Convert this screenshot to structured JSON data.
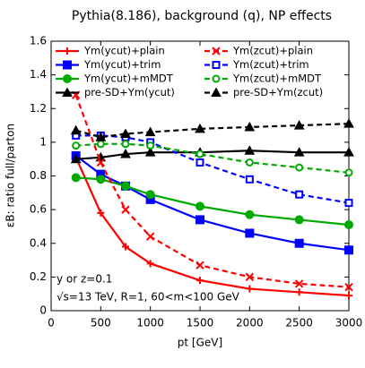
{
  "chart_data": {
    "type": "line",
    "title": "Pythia(8.186), background (q), NP effects",
    "x_label": "pt [GeV]",
    "y_label": "εB: ratio full/parton",
    "annotations": [
      "y or z=0.1",
      "√s=13 TeV, R=1, 60<m<100 GeV"
    ],
    "x": [
      250,
      500,
      750,
      1000,
      1500,
      2000,
      2500,
      3000
    ],
    "xlim": [
      0,
      3000
    ],
    "xticks": [
      0,
      500,
      1000,
      1500,
      2000,
      2500,
      3000
    ],
    "ylim": [
      0,
      1.6
    ],
    "yticks": [
      0,
      0.2,
      0.4,
      0.6,
      0.8,
      1,
      1.2,
      1.4,
      1.6
    ],
    "grid": false,
    "series": [
      {
        "name": "Ym(ycut)+plain",
        "color": "#ff0000",
        "dash": false,
        "marker": "plus",
        "values": [
          0.91,
          0.58,
          0.38,
          0.28,
          0.18,
          0.13,
          0.11,
          0.09
        ]
      },
      {
        "name": "Ym(ycut)+trim",
        "color": "#0000ff",
        "dash": false,
        "marker": "square",
        "values": [
          0.92,
          0.81,
          0.74,
          0.66,
          0.54,
          0.46,
          0.4,
          0.36
        ]
      },
      {
        "name": "Ym(ycut)+mMDT",
        "color": "#00aa00",
        "dash": false,
        "marker": "circle",
        "values": [
          0.79,
          0.78,
          0.74,
          0.69,
          0.62,
          0.57,
          0.54,
          0.51
        ]
      },
      {
        "name": "pre-SD+Ym(ycut)",
        "color": "#000000",
        "dash": false,
        "marker": "triangle",
        "values": [
          0.9,
          0.91,
          0.93,
          0.94,
          0.94,
          0.95,
          0.94,
          0.94
        ]
      },
      {
        "name": "Ym(zcut)+plain",
        "color": "#ff0000",
        "dash": true,
        "marker": "cross",
        "values": [
          1.28,
          0.88,
          0.6,
          0.44,
          0.27,
          0.2,
          0.16,
          0.14
        ]
      },
      {
        "name": "Ym(zcut)+trim",
        "color": "#0000ff",
        "dash": true,
        "marker": "open-square",
        "values": [
          1.04,
          1.04,
          1.03,
          1.0,
          0.88,
          0.78,
          0.69,
          0.64
        ]
      },
      {
        "name": "Ym(zcut)+mMDT",
        "color": "#00aa00",
        "dash": true,
        "marker": "open-circle",
        "values": [
          0.98,
          0.99,
          0.99,
          0.98,
          0.93,
          0.88,
          0.85,
          0.82
        ]
      },
      {
        "name": "pre-SD+Ym(zcut)",
        "color": "#000000",
        "dash": true,
        "marker": "triangle",
        "values": [
          1.07,
          1.03,
          1.05,
          1.06,
          1.08,
          1.09,
          1.1,
          1.11
        ]
      }
    ]
  }
}
